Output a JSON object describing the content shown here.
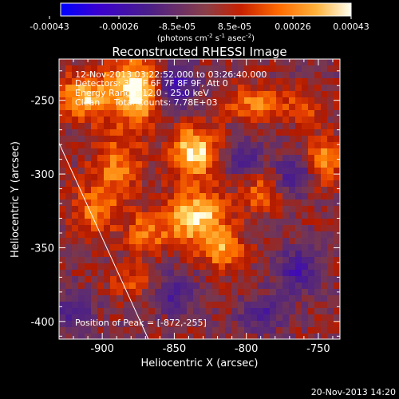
{
  "colors": {
    "background": "#000000",
    "foreground": "#ffffff",
    "colormap_neg": [
      "#0000ff",
      "#3a00d0",
      "#4a1e8a",
      "#5b2f7a",
      "#6b3f6f",
      "#8a3f48"
    ],
    "colormap_pos": [
      "#8a3f48",
      "#b11a00",
      "#e23c00",
      "#ff7a00",
      "#ffb23a",
      "#ffe680",
      "#fffff0"
    ]
  },
  "colorbar": {
    "tick_labels": [
      "-0.00043",
      "-0.00026",
      "-8.5e-05",
      "8.5e-05",
      "0.00026",
      "0.00043"
    ],
    "units_label": "(photons cm",
    "units_exp1": "-2",
    "units_s": " s",
    "units_exp2": "-1",
    "units_asec": " asec",
    "units_close": ")",
    "range": [
      -0.00043,
      0.00043
    ]
  },
  "chart_data": {
    "type": "heatmap",
    "title": "Reconstructed RHESSI Image",
    "xlabel": "Heliocentric X (arcsec)",
    "ylabel": "Heliocentric Y (arcsec)",
    "xlim": [
      -930,
      -735
    ],
    "ylim": [
      -412,
      -222
    ],
    "x_ticks": [
      -900,
      -850,
      -800,
      -750
    ],
    "x_tick_labels": [
      "-900",
      "-850",
      "-800",
      "-750"
    ],
    "y_ticks": [
      -400,
      -350,
      -300,
      -250
    ],
    "y_tick_labels": [
      "-400",
      "-350",
      "-300",
      "-250"
    ],
    "value_range": [
      -0.00043,
      0.00043
    ],
    "annotations": [
      "12-Nov-2013 03:22:52.000 to 03:26:40.000",
      "Detectors: 3F 5F 6F 7F 8F 9F, Att 0",
      "Energy Range: 12.0 - 25.0 keV",
      "Clean",
      "Total Counts: 7.78E+03",
      "Position of Peak = [-872,-255]"
    ],
    "peak_position": [
      -872,
      -255
    ],
    "limb_line": {
      "x": [
        -930,
        -868
      ],
      "y": [
        -279,
        -412
      ]
    },
    "bright_sources": [
      {
        "x": -877,
        "y": -243,
        "amp": 1.0,
        "sx": 13,
        "sy": 16
      },
      {
        "x": -913,
        "y": -248,
        "amp": 0.8,
        "sx": 12,
        "sy": 11
      },
      {
        "x": -836,
        "y": -285,
        "amp": 0.95,
        "sx": 11,
        "sy": 12
      },
      {
        "x": -835,
        "y": -330,
        "amp": 0.9,
        "sx": 15,
        "sy": 13
      },
      {
        "x": -816,
        "y": -352,
        "amp": 0.6,
        "sx": 10,
        "sy": 9
      },
      {
        "x": -795,
        "y": -252,
        "amp": 0.55,
        "sx": 14,
        "sy": 8
      },
      {
        "x": -890,
        "y": -295,
        "amp": 0.55,
        "sx": 12,
        "sy": 14
      },
      {
        "x": -905,
        "y": -325,
        "amp": 0.55,
        "sx": 11,
        "sy": 12
      },
      {
        "x": -748,
        "y": -292,
        "amp": 0.7,
        "sx": 9,
        "sy": 11
      },
      {
        "x": -870,
        "y": -340,
        "amp": 0.5,
        "sx": 10,
        "sy": 10
      },
      {
        "x": -790,
        "y": -312,
        "amp": 0.45,
        "sx": 10,
        "sy": 10
      },
      {
        "x": -880,
        "y": -372,
        "amp": 0.35,
        "sx": 12,
        "sy": 8
      },
      {
        "x": -760,
        "y": -255,
        "amp": 0.4,
        "sx": 10,
        "sy": 8
      }
    ],
    "dark_sources": [
      {
        "x": -850,
        "y": -240,
        "amp": 0.7,
        "sx": 10,
        "sy": 10
      },
      {
        "x": -765,
        "y": -300,
        "amp": 0.6,
        "sx": 10,
        "sy": 9
      },
      {
        "x": -802,
        "y": -290,
        "amp": 0.5,
        "sx": 9,
        "sy": 9
      },
      {
        "x": -850,
        "y": -380,
        "amp": 0.5,
        "sx": 10,
        "sy": 10
      },
      {
        "x": -790,
        "y": -395,
        "amp": 0.45,
        "sx": 11,
        "sy": 9
      },
      {
        "x": -765,
        "y": -365,
        "amp": 0.55,
        "sx": 10,
        "sy": 11
      },
      {
        "x": -920,
        "y": -395,
        "amp": 0.4,
        "sx": 10,
        "sy": 10
      }
    ]
  },
  "footer": {
    "timestamp": "20-Nov-2013 14:20"
  }
}
